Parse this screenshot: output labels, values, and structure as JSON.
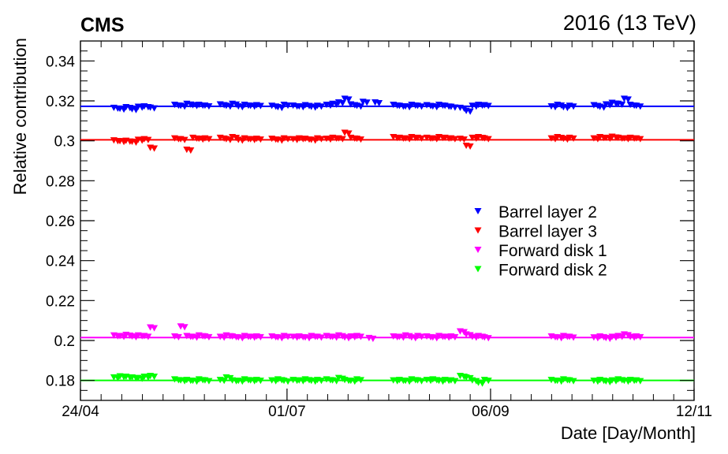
{
  "chart_data": {
    "type": "scatter",
    "experiment": "CMS",
    "run_label": "2016 (13 TeV)",
    "xlabel": "Date [Day/Month]",
    "ylabel": "Relative contribution",
    "x_range": [
      "24/04",
      "12/11"
    ],
    "ylim": [
      0.17,
      0.35
    ],
    "x_ticks": [
      "24/04",
      "01/07",
      "06/09",
      "12/11"
    ],
    "y_ticks": [
      0.18,
      0.2,
      0.22,
      0.24,
      0.26,
      0.28,
      0.3,
      0.32,
      0.34
    ],
    "y_tick_labels": [
      "0.18",
      "0.2",
      "0.22",
      "0.24",
      "0.26",
      "0.28",
      "0.3",
      "0.32",
      "0.34"
    ],
    "legend_position": "center-right",
    "grid": false,
    "marker": "triangle-down",
    "series": [
      {
        "name": "Barrel layer 2",
        "color": "#0000ff",
        "fit_level": 0.3173,
        "points": [
          [
            "05/05",
            0.3165
          ],
          [
            "07/05",
            0.316
          ],
          [
            "09/05",
            0.3168
          ],
          [
            "11/05",
            0.3158
          ],
          [
            "13/05",
            0.317
          ],
          [
            "15/05",
            0.3172
          ],
          [
            "17/05",
            0.3166
          ],
          [
            "25/05",
            0.318
          ],
          [
            "27/05",
            0.3175
          ],
          [
            "29/05",
            0.3185
          ],
          [
            "31/05",
            0.3178
          ],
          [
            "02/06",
            0.318
          ],
          [
            "04/06",
            0.3176
          ],
          [
            "09/06",
            0.3182
          ],
          [
            "11/06",
            0.3175
          ],
          [
            "13/06",
            0.3185
          ],
          [
            "15/06",
            0.3172
          ],
          [
            "17/06",
            0.318
          ],
          [
            "19/06",
            0.3175
          ],
          [
            "21/06",
            0.3178
          ],
          [
            "26/06",
            0.3175
          ],
          [
            "28/06",
            0.3168
          ],
          [
            "30/06",
            0.318
          ],
          [
            "03/07",
            0.3176
          ],
          [
            "05/07",
            0.3172
          ],
          [
            "07/07",
            0.3178
          ],
          [
            "09/07",
            0.317
          ],
          [
            "11/07",
            0.3175
          ],
          [
            "14/07",
            0.318
          ],
          [
            "16/07",
            0.3185
          ],
          [
            "18/07",
            0.3192
          ],
          [
            "20/07",
            0.321
          ],
          [
            "22/07",
            0.3182
          ],
          [
            "24/07",
            0.3175
          ],
          [
            "26/07",
            0.3195
          ],
          [
            "30/07",
            0.3192
          ],
          [
            "05/08",
            0.318
          ],
          [
            "07/08",
            0.3175
          ],
          [
            "09/08",
            0.3172
          ],
          [
            "11/08",
            0.318
          ],
          [
            "13/08",
            0.3175
          ],
          [
            "16/08",
            0.3178
          ],
          [
            "18/08",
            0.3172
          ],
          [
            "20/08",
            0.318
          ],
          [
            "22/08",
            0.3175
          ],
          [
            "24/08",
            0.317
          ],
          [
            "27/08",
            0.3165
          ],
          [
            "29/08",
            0.315
          ],
          [
            "31/08",
            0.3175
          ],
          [
            "02/09",
            0.318
          ],
          [
            "04/09",
            0.3178
          ],
          [
            "26/09",
            0.3172
          ],
          [
            "28/09",
            0.318
          ],
          [
            "30/09",
            0.3168
          ],
          [
            "02/10",
            0.3175
          ],
          [
            "10/10",
            0.3178
          ],
          [
            "12/10",
            0.317
          ],
          [
            "14/10",
            0.3182
          ],
          [
            "16/10",
            0.319
          ],
          [
            "18/10",
            0.3185
          ],
          [
            "20/10",
            0.321
          ],
          [
            "22/10",
            0.318
          ],
          [
            "24/10",
            0.3175
          ]
        ]
      },
      {
        "name": "Barrel layer 3",
        "color": "#ff0000",
        "fit_level": 0.3005,
        "points": [
          [
            "05/05",
            0.3002
          ],
          [
            "07/05",
            0.2998
          ],
          [
            "09/05",
            0.3
          ],
          [
            "11/05",
            0.2995
          ],
          [
            "13/05",
            0.3005
          ],
          [
            "15/05",
            0.3008
          ],
          [
            "17/05",
            0.2965
          ],
          [
            "25/05",
            0.3012
          ],
          [
            "27/05",
            0.3008
          ],
          [
            "29/05",
            0.2955
          ],
          [
            "31/05",
            0.3015
          ],
          [
            "02/06",
            0.301
          ],
          [
            "04/06",
            0.3012
          ],
          [
            "09/06",
            0.3015
          ],
          [
            "11/06",
            0.3008
          ],
          [
            "13/06",
            0.3018
          ],
          [
            "15/06",
            0.3005
          ],
          [
            "17/06",
            0.3012
          ],
          [
            "19/06",
            0.3008
          ],
          [
            "21/06",
            0.301
          ],
          [
            "26/06",
            0.301
          ],
          [
            "28/06",
            0.3005
          ],
          [
            "30/06",
            0.3012
          ],
          [
            "03/07",
            0.3008
          ],
          [
            "05/07",
            0.3012
          ],
          [
            "07/07",
            0.301
          ],
          [
            "09/07",
            0.3005
          ],
          [
            "11/07",
            0.3012
          ],
          [
            "14/07",
            0.301
          ],
          [
            "16/07",
            0.3015
          ],
          [
            "18/07",
            0.3012
          ],
          [
            "20/07",
            0.304
          ],
          [
            "22/07",
            0.3015
          ],
          [
            "24/07",
            0.301
          ],
          [
            "05/08",
            0.3018
          ],
          [
            "07/08",
            0.3015
          ],
          [
            "09/08",
            0.3012
          ],
          [
            "11/08",
            0.3018
          ],
          [
            "13/08",
            0.3015
          ],
          [
            "16/08",
            0.3015
          ],
          [
            "18/08",
            0.3012
          ],
          [
            "20/08",
            0.3018
          ],
          [
            "22/08",
            0.3015
          ],
          [
            "24/08",
            0.3012
          ],
          [
            "27/08",
            0.301
          ],
          [
            "29/08",
            0.2975
          ],
          [
            "31/08",
            0.3015
          ],
          [
            "02/09",
            0.3018
          ],
          [
            "04/09",
            0.3012
          ],
          [
            "26/09",
            0.3012
          ],
          [
            "28/09",
            0.3018
          ],
          [
            "30/09",
            0.301
          ],
          [
            "02/10",
            0.3015
          ],
          [
            "10/10",
            0.3012
          ],
          [
            "12/10",
            0.3018
          ],
          [
            "14/10",
            0.3015
          ],
          [
            "16/10",
            0.302
          ],
          [
            "18/10",
            0.3015
          ],
          [
            "20/10",
            0.3012
          ],
          [
            "22/10",
            0.3015
          ],
          [
            "24/10",
            0.3012
          ]
        ]
      },
      {
        "name": "Forward disk 1",
        "color": "#ff00ff",
        "fit_level": 0.2015,
        "points": [
          [
            "05/05",
            0.2025
          ],
          [
            "07/05",
            0.2022
          ],
          [
            "09/05",
            0.2028
          ],
          [
            "11/05",
            0.202
          ],
          [
            "13/05",
            0.2025
          ],
          [
            "15/05",
            0.2022
          ],
          [
            "17/05",
            0.2065
          ],
          [
            "25/05",
            0.202
          ],
          [
            "27/05",
            0.207
          ],
          [
            "29/05",
            0.2022
          ],
          [
            "31/05",
            0.2018
          ],
          [
            "02/06",
            0.2025
          ],
          [
            "04/06",
            0.202
          ],
          [
            "09/06",
            0.2018
          ],
          [
            "11/06",
            0.2025
          ],
          [
            "13/06",
            0.202
          ],
          [
            "15/06",
            0.2015
          ],
          [
            "17/06",
            0.2022
          ],
          [
            "19/06",
            0.2018
          ],
          [
            "21/06",
            0.202
          ],
          [
            "26/06",
            0.202
          ],
          [
            "28/06",
            0.2015
          ],
          [
            "30/06",
            0.2022
          ],
          [
            "03/07",
            0.2018
          ],
          [
            "05/07",
            0.202
          ],
          [
            "07/07",
            0.2015
          ],
          [
            "09/07",
            0.2022
          ],
          [
            "11/07",
            0.2018
          ],
          [
            "14/07",
            0.2022
          ],
          [
            "16/07",
            0.2018
          ],
          [
            "18/07",
            0.2025
          ],
          [
            "20/07",
            0.2015
          ],
          [
            "22/07",
            0.202
          ],
          [
            "24/07",
            0.2022
          ],
          [
            "28/07",
            0.2012
          ],
          [
            "05/08",
            0.202
          ],
          [
            "07/08",
            0.2018
          ],
          [
            "09/08",
            0.2025
          ],
          [
            "11/08",
            0.2015
          ],
          [
            "13/08",
            0.2022
          ],
          [
            "16/08",
            0.202
          ],
          [
            "18/08",
            0.2015
          ],
          [
            "20/08",
            0.2022
          ],
          [
            "22/08",
            0.2018
          ],
          [
            "24/08",
            0.202
          ],
          [
            "27/08",
            0.2045
          ],
          [
            "29/08",
            0.203
          ],
          [
            "31/08",
            0.2018
          ],
          [
            "02/09",
            0.2022
          ],
          [
            "04/09",
            0.2015
          ],
          [
            "26/09",
            0.202
          ],
          [
            "28/09",
            0.2015
          ],
          [
            "30/09",
            0.2022
          ],
          [
            "02/10",
            0.2018
          ],
          [
            "10/10",
            0.2015
          ],
          [
            "12/10",
            0.202
          ],
          [
            "14/10",
            0.2012
          ],
          [
            "16/10",
            0.2018
          ],
          [
            "18/10",
            0.2022
          ],
          [
            "20/10",
            0.203
          ],
          [
            "22/10",
            0.2018
          ],
          [
            "24/10",
            0.202
          ]
        ]
      },
      {
        "name": "Forward disk 2",
        "color": "#00ff00",
        "fit_level": 0.18,
        "points": [
          [
            "05/05",
            0.1815
          ],
          [
            "07/05",
            0.182
          ],
          [
            "09/05",
            0.1818
          ],
          [
            "11/05",
            0.1815
          ],
          [
            "13/05",
            0.1812
          ],
          [
            "15/05",
            0.1818
          ],
          [
            "17/05",
            0.1822
          ],
          [
            "25/05",
            0.1805
          ],
          [
            "27/05",
            0.18
          ],
          [
            "29/05",
            0.1802
          ],
          [
            "31/05",
            0.1798
          ],
          [
            "02/06",
            0.1805
          ],
          [
            "04/06",
            0.18
          ],
          [
            "09/06",
            0.1802
          ],
          [
            "11/06",
            0.1815
          ],
          [
            "13/06",
            0.18
          ],
          [
            "15/06",
            0.1798
          ],
          [
            "17/06",
            0.1805
          ],
          [
            "19/06",
            0.18
          ],
          [
            "21/06",
            0.1802
          ],
          [
            "26/06",
            0.18
          ],
          [
            "28/06",
            0.1805
          ],
          [
            "30/06",
            0.1798
          ],
          [
            "03/07",
            0.1802
          ],
          [
            "05/07",
            0.18
          ],
          [
            "07/07",
            0.1805
          ],
          [
            "09/07",
            0.1798
          ],
          [
            "11/07",
            0.1802
          ],
          [
            "14/07",
            0.1805
          ],
          [
            "16/07",
            0.18
          ],
          [
            "18/07",
            0.1812
          ],
          [
            "20/07",
            0.1802
          ],
          [
            "22/07",
            0.1798
          ],
          [
            "24/07",
            0.1805
          ],
          [
            "05/08",
            0.18
          ],
          [
            "07/08",
            0.1802
          ],
          [
            "09/08",
            0.1798
          ],
          [
            "11/08",
            0.1805
          ],
          [
            "13/08",
            0.18
          ],
          [
            "16/08",
            0.1802
          ],
          [
            "18/08",
            0.1805
          ],
          [
            "20/08",
            0.1798
          ],
          [
            "22/08",
            0.1802
          ],
          [
            "24/08",
            0.18
          ],
          [
            "27/08",
            0.1822
          ],
          [
            "29/08",
            0.1815
          ],
          [
            "31/08",
            0.18
          ],
          [
            "02/09",
            0.1788
          ],
          [
            "04/09",
            0.1802
          ],
          [
            "26/09",
            0.1802
          ],
          [
            "28/09",
            0.1798
          ],
          [
            "30/09",
            0.1805
          ],
          [
            "02/10",
            0.18
          ],
          [
            "10/10",
            0.1798
          ],
          [
            "12/10",
            0.1802
          ],
          [
            "14/10",
            0.1795
          ],
          [
            "16/10",
            0.18
          ],
          [
            "18/10",
            0.1805
          ],
          [
            "20/10",
            0.1798
          ],
          [
            "22/10",
            0.1802
          ],
          [
            "24/10",
            0.18
          ]
        ]
      }
    ]
  }
}
